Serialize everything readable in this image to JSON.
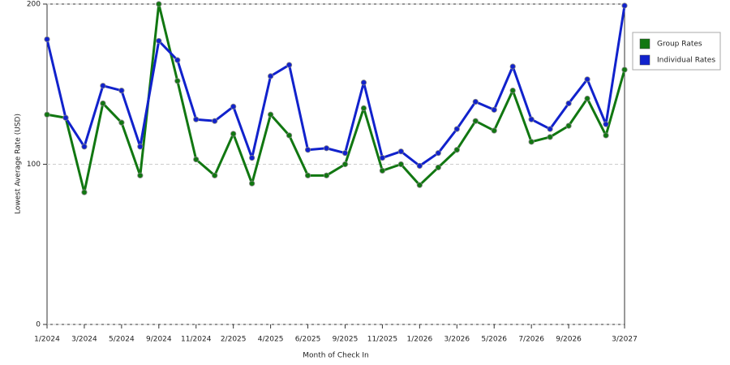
{
  "chart_data": {
    "type": "line",
    "x_label": "Month of Check In",
    "y_label": "Lowest Average Rate (USD)",
    "categories": [
      "1/2024",
      null,
      "3/2024",
      null,
      "5/2024",
      null,
      "9/2024",
      null,
      "11/2024",
      null,
      "2/2025",
      null,
      "4/2025",
      null,
      "6/2025",
      null,
      "9/2025",
      null,
      "11/2025",
      null,
      "1/2026",
      null,
      "3/2026",
      null,
      "5/2026",
      null,
      "7/2026",
      null,
      "9/2026",
      null,
      null,
      "3/2027"
    ],
    "series": [
      {
        "name": "Group Rates",
        "color": "#117711",
        "values": [
          131,
          129,
          82.5,
          138,
          126,
          93,
          200,
          152,
          103,
          93,
          119,
          88,
          131,
          118,
          93,
          93,
          100,
          135,
          96,
          100,
          87,
          98,
          109,
          127,
          121,
          146,
          114,
          117,
          124,
          141,
          118,
          159
        ]
      },
      {
        "name": "Individual Rates",
        "color": "#1122cc",
        "values": [
          178,
          129,
          111,
          149,
          146,
          111,
          177,
          165,
          128,
          127,
          136,
          104,
          155,
          162,
          109,
          110,
          107,
          151,
          104,
          108,
          99,
          107,
          122,
          139,
          134,
          161,
          128,
          122,
          138,
          153,
          125,
          199
        ]
      }
    ],
    "ylim": [
      0,
      200
    ],
    "yticks": [
      0,
      100,
      200
    ],
    "grid": true,
    "legend": "right"
  }
}
